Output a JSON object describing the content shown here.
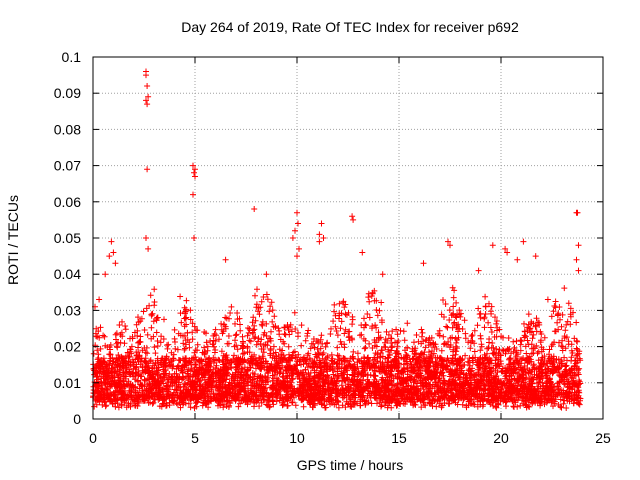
{
  "chart_data": {
    "type": "scatter",
    "title": "Day 264 of 2019, Rate Of TEC Index for receiver p692",
    "xlabel": "GPS time / hours",
    "ylabel": "ROTI / TECUs",
    "xlim": [
      0,
      25
    ],
    "ylim": [
      0,
      0.1
    ],
    "xticks": [
      0,
      5,
      10,
      15,
      20,
      25
    ],
    "xtick_labels": [
      "0",
      "5",
      "10",
      "15",
      "20",
      "25"
    ],
    "yticks": [
      0,
      0.01,
      0.02,
      0.03,
      0.04,
      0.05,
      0.06,
      0.07,
      0.08,
      0.09,
      0.1
    ],
    "ytick_labels": [
      "0",
      "0.01",
      "0.02",
      "0.03",
      "0.04",
      "0.05",
      "0.06",
      "0.07",
      "0.08",
      "0.09",
      "0.1"
    ],
    "grid": true,
    "marker": "+",
    "color": "#ff0000",
    "series": [
      {
        "name": "ROTI",
        "points": [
          [
            0.1,
            0.031
          ],
          [
            0.3,
            0.033
          ],
          [
            0.6,
            0.04
          ],
          [
            0.8,
            0.045
          ],
          [
            0.9,
            0.049
          ],
          [
            1.0,
            0.046
          ],
          [
            1.1,
            0.043
          ],
          [
            2.6,
            0.096
          ],
          [
            2.6,
            0.095
          ],
          [
            2.65,
            0.092
          ],
          [
            2.7,
            0.089
          ],
          [
            2.6,
            0.088
          ],
          [
            2.65,
            0.087
          ],
          [
            2.65,
            0.069
          ],
          [
            2.6,
            0.05
          ],
          [
            2.7,
            0.047
          ],
          [
            4.9,
            0.07
          ],
          [
            5.0,
            0.069
          ],
          [
            4.95,
            0.068
          ],
          [
            5.0,
            0.067
          ],
          [
            4.9,
            0.062
          ],
          [
            4.95,
            0.05
          ],
          [
            6.5,
            0.044
          ],
          [
            7.9,
            0.058
          ],
          [
            8.5,
            0.04
          ],
          [
            9.8,
            0.05
          ],
          [
            10.0,
            0.057
          ],
          [
            10.05,
            0.054
          ],
          [
            9.9,
            0.052
          ],
          [
            10.1,
            0.047
          ],
          [
            10.0,
            0.045
          ],
          [
            11.1,
            0.051
          ],
          [
            11.2,
            0.054
          ],
          [
            11.3,
            0.05
          ],
          [
            11.1,
            0.049
          ],
          [
            12.7,
            0.056
          ],
          [
            12.75,
            0.055
          ],
          [
            13.2,
            0.046
          ],
          [
            14.2,
            0.04
          ],
          [
            16.2,
            0.043
          ],
          [
            17.4,
            0.049
          ],
          [
            17.5,
            0.048
          ],
          [
            18.9,
            0.041
          ],
          [
            19.6,
            0.048
          ],
          [
            20.2,
            0.047
          ],
          [
            20.3,
            0.046
          ],
          [
            20.8,
            0.044
          ],
          [
            21.1,
            0.049
          ],
          [
            21.7,
            0.045
          ],
          [
            22.3,
            0.033
          ],
          [
            23.7,
            0.057
          ],
          [
            23.75,
            0.057
          ],
          [
            23.8,
            0.048
          ],
          [
            23.7,
            0.044
          ],
          [
            23.8,
            0.041
          ]
        ],
        "dense_band": {
          "x_range": [
            0,
            23.9
          ],
          "y_min": 0.003,
          "y_max_typical": 0.035,
          "median": 0.011
        }
      }
    ]
  }
}
